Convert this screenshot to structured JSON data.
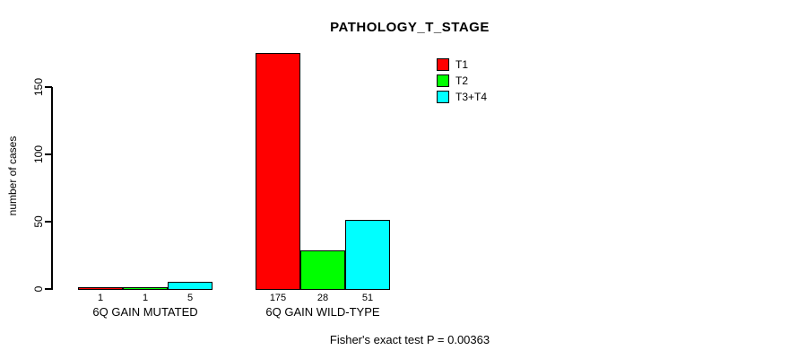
{
  "chart_data": {
    "type": "bar",
    "title": "PATHOLOGY_T_STAGE",
    "ylabel": "number of cases",
    "xlabel": "",
    "yticks": [
      0,
      50,
      100,
      150
    ],
    "ylim": [
      0,
      175
    ],
    "grid": false,
    "legend_position": "top-right",
    "series": [
      "T1",
      "T2",
      "T3+T4"
    ],
    "colors": [
      "#ff0000",
      "#00ff00",
      "#00ffff"
    ],
    "categories": [
      "6Q GAIN MUTATED",
      "6Q GAIN WILD-TYPE"
    ],
    "groups": [
      {
        "label": "6Q GAIN MUTATED",
        "values": [
          1,
          1,
          5
        ]
      },
      {
        "label": "6Q GAIN WILD-TYPE",
        "values": [
          175,
          28,
          51
        ]
      }
    ],
    "annotation": "Fisher's exact test P = 0.00363"
  }
}
